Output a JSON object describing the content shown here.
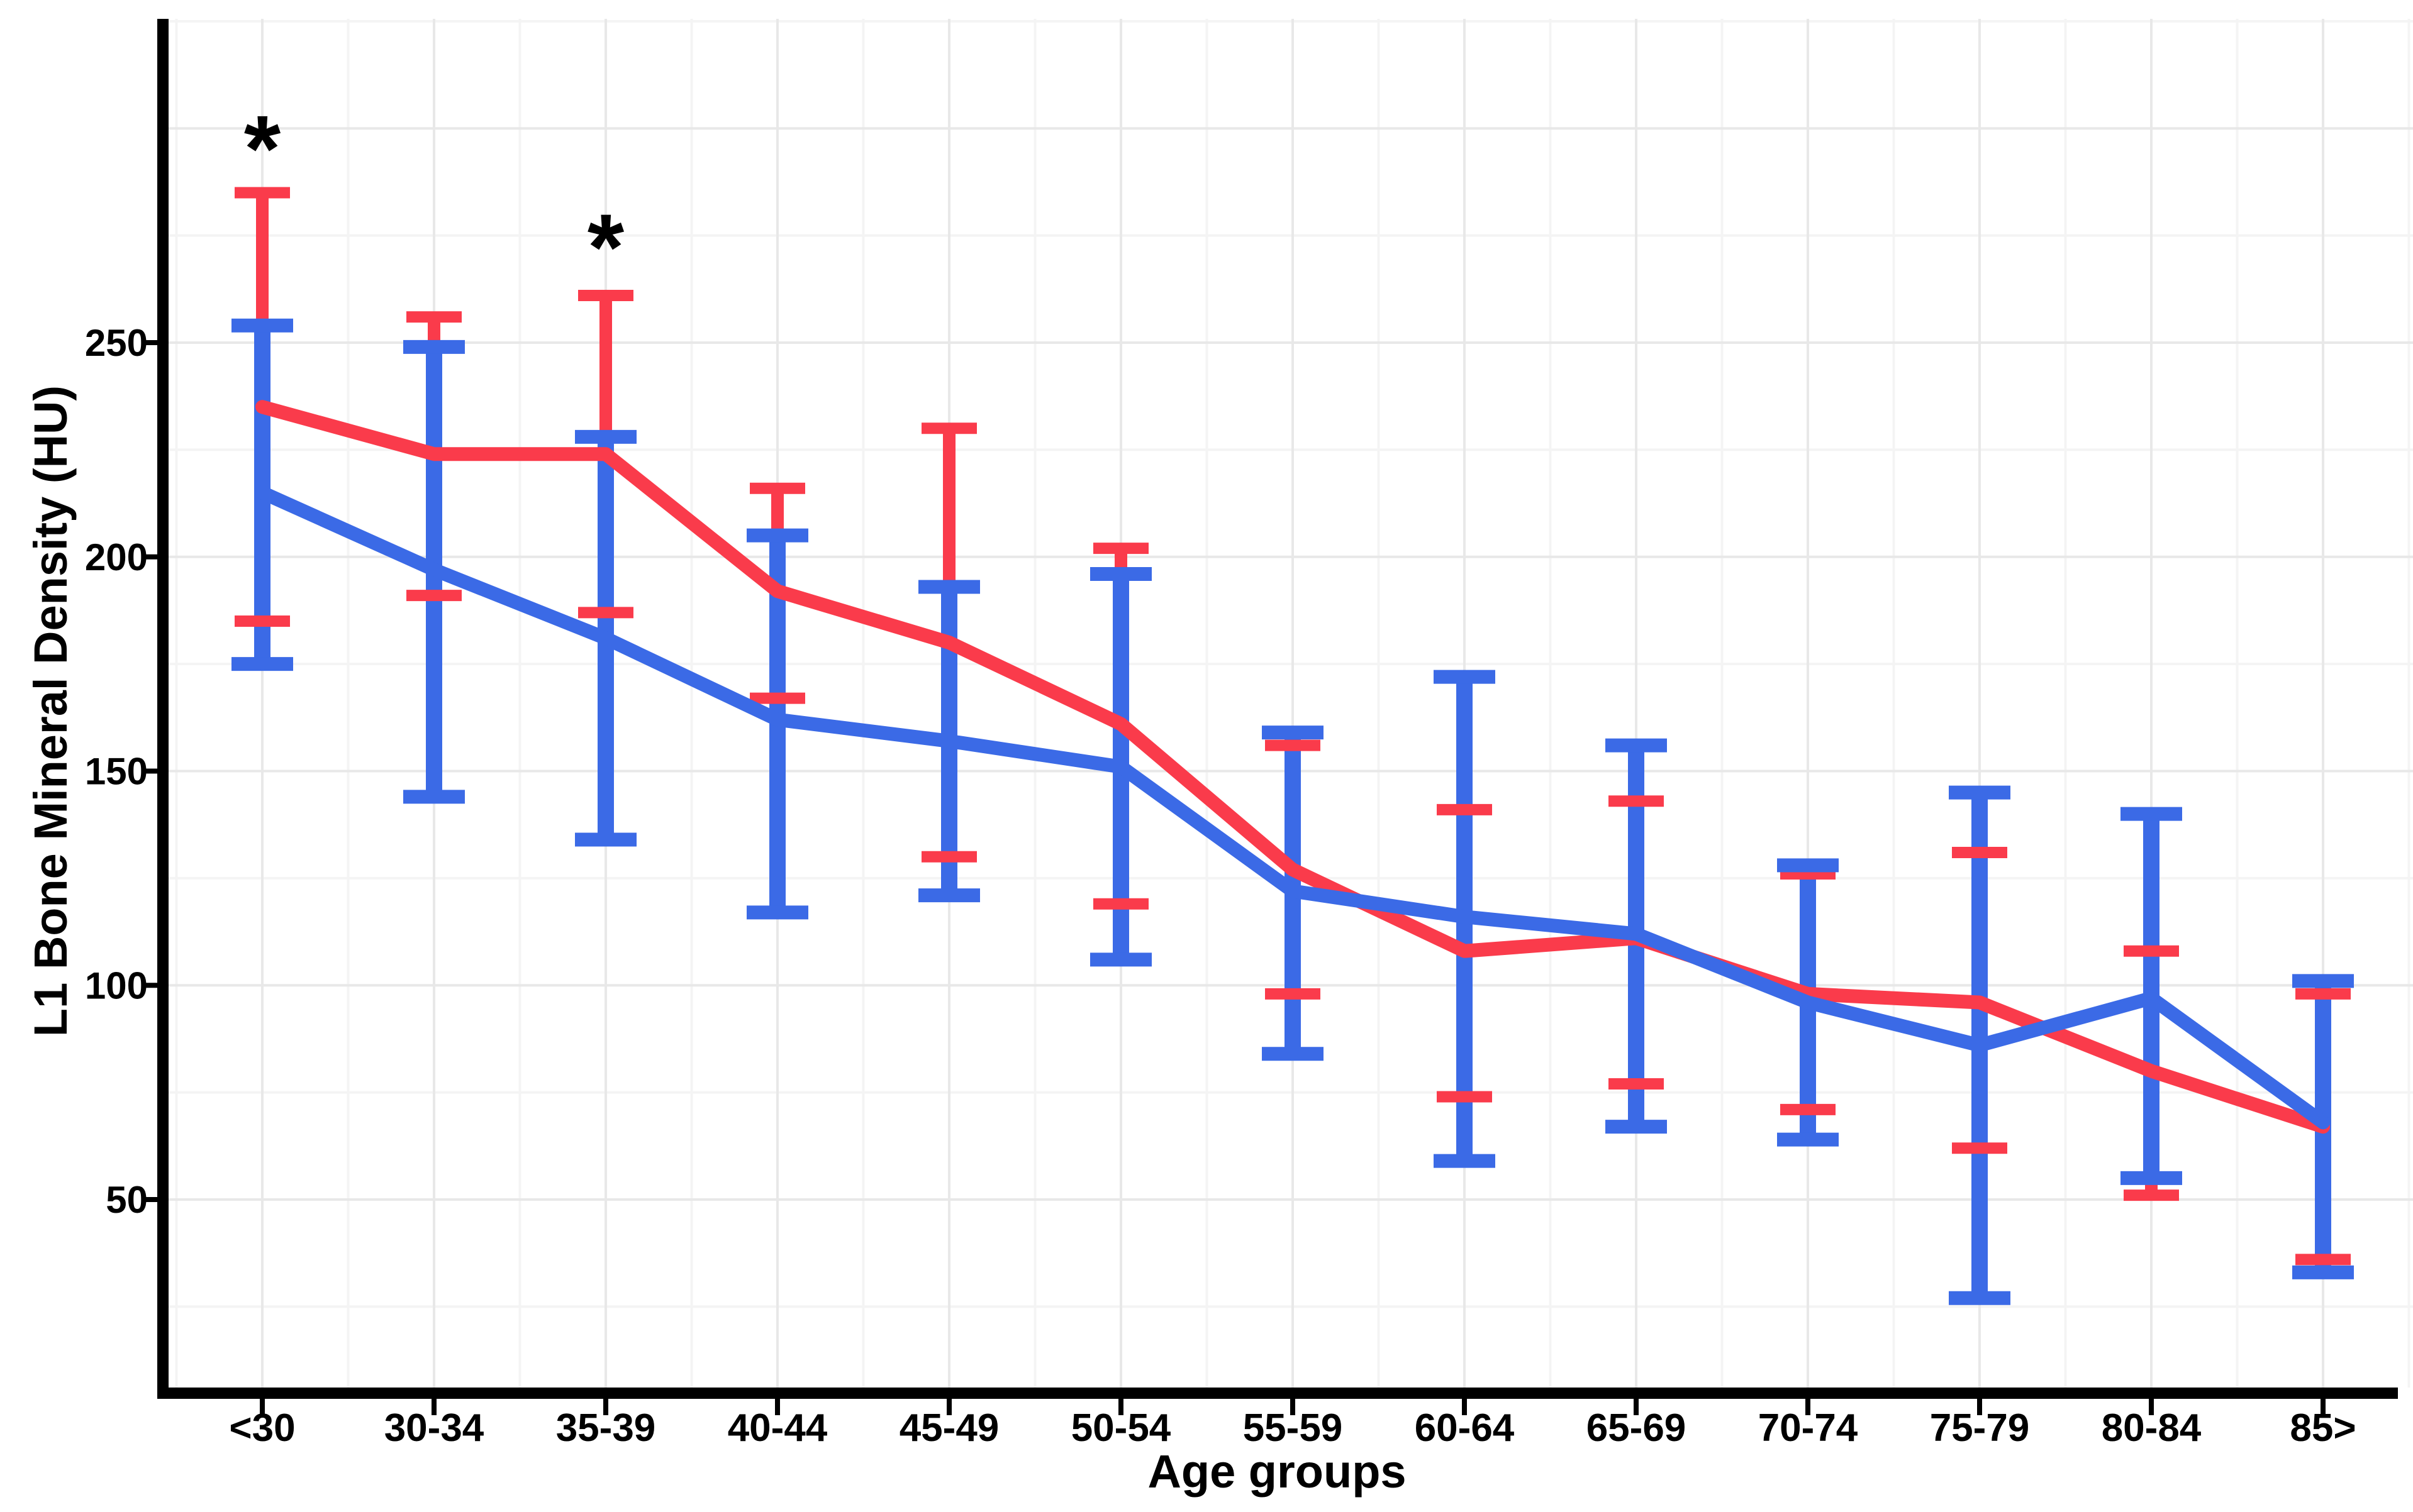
{
  "chart_data": {
    "type": "line",
    "title": "",
    "xlabel": "Age groups",
    "ylabel": "L1 Bone Mineral Density (HU)",
    "categories": [
      "<30",
      "30-34",
      "35-39",
      "40-44",
      "45-49",
      "50-54",
      "55-59",
      "60-64",
      "65-69",
      "70-74",
      "75-79",
      "80-84",
      "85>"
    ],
    "ylim": [
      0,
      325
    ],
    "y_ticks": [
      50,
      100,
      150,
      200,
      250
    ],
    "grid": {
      "major_color": "#e8e8e8",
      "minor_color": "#f4f4f4",
      "show_major": true,
      "show_minor": true
    },
    "legend_position": "none",
    "error_bar_style": "mean ± SD with caps",
    "series": [
      {
        "name": "red-group",
        "color": "#FA3B4B",
        "values": [
          235,
          224,
          224,
          192,
          180,
          161,
          127,
          108,
          111,
          98,
          96,
          80,
          67
        ],
        "upper": [
          285,
          256,
          261,
          216,
          230,
          202,
          156,
          141,
          143,
          126,
          131,
          108,
          98
        ],
        "lower": [
          185,
          191,
          187,
          167,
          130,
          119,
          98,
          74,
          77,
          71,
          62,
          51,
          36
        ]
      },
      {
        "name": "blue-group",
        "color": "#3B6AE6",
        "values": [
          215,
          197,
          181,
          162,
          157,
          151,
          122,
          116,
          112,
          96,
          86,
          97,
          68
        ],
        "upper": [
          254,
          249,
          228,
          205,
          193,
          196,
          159,
          172,
          156,
          128,
          145,
          140,
          101
        ],
        "lower": [
          175,
          144,
          134,
          117,
          121,
          106,
          84,
          59,
          67,
          64,
          27,
          55,
          33
        ]
      }
    ],
    "annotations": [
      {
        "text": "*",
        "category_index": 0,
        "value": 299
      },
      {
        "text": "*",
        "category_index": 2,
        "value": 276
      }
    ],
    "colors": {
      "axis": "#000000",
      "text": "#000000",
      "background": "#ffffff"
    }
  }
}
